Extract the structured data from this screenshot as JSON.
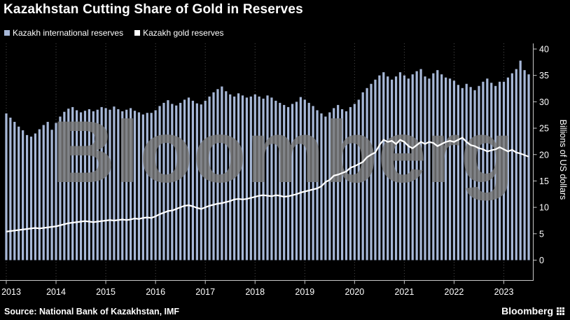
{
  "title": "Kazakhstan Cutting Share of Gold in Reserves",
  "legend": [
    {
      "label": "Kazakh international reserves",
      "color": "#a7b8d8"
    },
    {
      "label": "Kazakh gold reserves",
      "color": "#ffffff"
    }
  ],
  "watermark": "Bloomberg",
  "source": "Source: National Bank of Kazakhstan, IMF",
  "brand": "Bloomberg",
  "icons": {
    "terminal-grid-icon": "3x3-grid"
  },
  "colors": {
    "background": "#000000",
    "axis": "#c8c8c8",
    "watermark": "#7a7a7a",
    "text": "#ffffff"
  },
  "chart_data": {
    "type": "bar",
    "subtype": "monthly bars with line overlay",
    "title": "Kazakhstan Cutting Share of Gold in Reserves",
    "x_start": "2013-01",
    "x_end": "2023-07",
    "year_ticks": [
      "2013",
      "2014",
      "2015",
      "2016",
      "2017",
      "2018",
      "2019",
      "2020",
      "2021",
      "2022",
      "2023"
    ],
    "ylabel": "Billions of US dollars",
    "ylim": [
      0,
      40
    ],
    "yticks": [
      0,
      5,
      10,
      15,
      20,
      25,
      30,
      35,
      40
    ],
    "grid": "vertical dotted lines at each year",
    "legend_position": "top-left",
    "series": [
      {
        "name": "Kazakh international reserves",
        "render": "bar",
        "color": "#a7b8d8",
        "values": [
          27.8,
          27.0,
          26.2,
          25.3,
          24.6,
          23.7,
          23.4,
          24.0,
          24.8,
          25.6,
          26.2,
          24.7,
          26.0,
          27.2,
          28.1,
          28.7,
          29.0,
          28.4,
          28.0,
          28.3,
          28.6,
          28.2,
          28.5,
          29.0,
          28.8,
          28.5,
          29.1,
          28.6,
          28.2,
          28.5,
          28.8,
          28.3,
          28.0,
          27.6,
          27.9,
          27.9,
          28.4,
          29.2,
          29.8,
          30.3,
          29.6,
          29.3,
          29.8,
          30.4,
          30.8,
          30.2,
          29.7,
          29.5,
          30.2,
          31.0,
          31.8,
          32.4,
          32.9,
          32.0,
          31.4,
          31.0,
          31.6,
          31.2,
          30.8,
          31.0,
          31.4,
          31.0,
          30.6,
          31.2,
          30.8,
          30.2,
          29.8,
          29.4,
          29.0,
          29.6,
          30.0,
          30.9,
          30.4,
          29.8,
          29.2,
          28.4,
          27.8,
          27.2,
          28.0,
          28.8,
          29.4,
          28.6,
          28.2,
          29.0,
          29.6,
          30.4,
          31.8,
          32.6,
          33.4,
          34.2,
          35.0,
          35.6,
          34.8,
          34.2,
          34.8,
          35.6,
          35.0,
          34.4,
          35.2,
          35.8,
          36.2,
          34.8,
          34.4,
          35.4,
          36.0,
          35.2,
          34.6,
          34.4,
          34.0,
          33.2,
          32.6,
          33.4,
          32.8,
          32.2,
          33.0,
          33.8,
          34.4,
          33.6,
          33.0,
          33.8,
          33.8,
          34.6,
          35.4,
          36.2,
          37.8,
          36.0,
          35.2
        ]
      },
      {
        "name": "Kazakh gold reserves",
        "render": "line",
        "color": "#ffffff",
        "values": [
          5.4,
          5.5,
          5.6,
          5.7,
          5.8,
          5.9,
          6.0,
          6.1,
          6.0,
          6.1,
          6.2,
          6.3,
          6.4,
          6.6,
          6.8,
          7.0,
          7.1,
          7.2,
          7.3,
          7.4,
          7.3,
          7.2,
          7.3,
          7.4,
          7.5,
          7.6,
          7.5,
          7.6,
          7.7,
          7.6,
          7.7,
          7.9,
          7.8,
          8.0,
          8.1,
          8.0,
          8.3,
          8.7,
          9.0,
          9.3,
          9.4,
          9.7,
          10.0,
          10.3,
          10.4,
          10.2,
          9.9,
          9.7,
          10.0,
          10.3,
          10.5,
          10.7,
          10.8,
          11.0,
          11.2,
          11.5,
          11.6,
          11.5,
          11.6,
          11.8,
          12.0,
          12.2,
          12.3,
          12.2,
          12.1,
          12.3,
          12.2,
          12.0,
          12.1,
          12.3,
          12.5,
          12.8,
          13.0,
          13.2,
          13.4,
          13.6,
          14.0,
          14.8,
          15.2,
          16.0,
          16.2,
          16.5,
          16.8,
          17.5,
          17.8,
          18.2,
          18.6,
          19.5,
          20.0,
          20.4,
          21.8,
          22.8,
          22.4,
          22.6,
          22.0,
          22.8,
          22.4,
          21.6,
          21.2,
          21.8,
          22.4,
          22.0,
          22.4,
          22.2,
          21.6,
          22.0,
          22.4,
          22.6,
          22.4,
          22.8,
          23.2,
          22.4,
          21.8,
          21.6,
          21.2,
          21.0,
          20.6,
          20.8,
          21.0,
          21.4,
          21.0,
          20.6,
          20.9,
          20.4,
          20.2,
          19.9,
          19.6
        ]
      }
    ]
  }
}
